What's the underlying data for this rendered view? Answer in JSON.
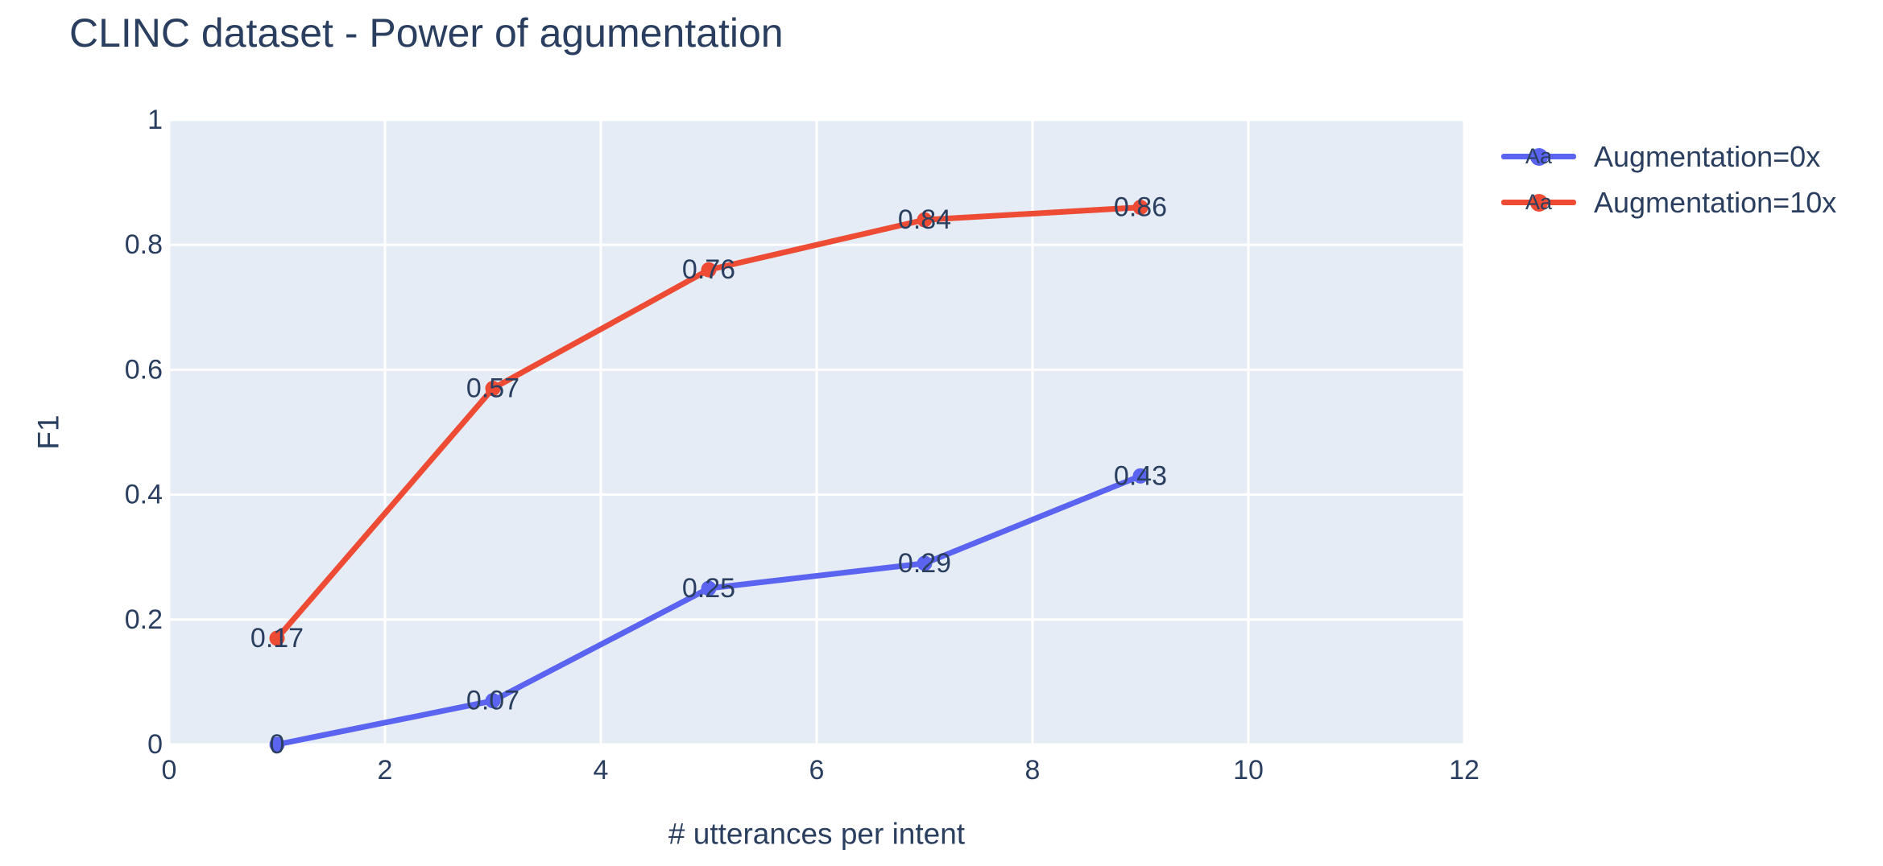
{
  "chart_data": {
    "type": "line",
    "title": "CLINC dataset - Power of agumentation",
    "xlabel": "# utterances per intent",
    "ylabel": "F1",
    "xlim": [
      0,
      12
    ],
    "ylim": [
      0,
      1
    ],
    "xticks": [
      0,
      2,
      4,
      6,
      8,
      10,
      12
    ],
    "xtick_labels": [
      "0",
      "2",
      "4",
      "6",
      "8",
      "10",
      "12"
    ],
    "yticks": [
      0,
      0.2,
      0.4,
      0.6,
      0.8,
      1
    ],
    "ytick_labels": [
      "0",
      "0.2",
      "0.4",
      "0.6",
      "0.8",
      "1"
    ],
    "grid": true,
    "legend_position": "outside-right-top",
    "x": [
      1,
      3,
      5,
      7,
      9
    ],
    "series": [
      {
        "name": "Augmentation=0x",
        "color": "#5b63f1",
        "mode": "lines+markers+text",
        "values": [
          0,
          0.07,
          0.25,
          0.29,
          0.43
        ],
        "point_labels": [
          "0",
          "0.07",
          "0.25",
          "0.29",
          "0.43"
        ]
      },
      {
        "name": "Augmentation=10x",
        "color": "#ee4b35",
        "mode": "lines+markers+text",
        "values": [
          0.17,
          0.57,
          0.76,
          0.84,
          0.86
        ],
        "point_labels": [
          "0.17",
          "0.57",
          "0.76",
          "0.84",
          "0.86"
        ]
      }
    ],
    "colors": {
      "text": "#2a3f5f",
      "plot_bg": "#e5ecf6",
      "grid": "#ffffff"
    }
  },
  "legend": {
    "items": [
      {
        "label": "Augmentation=0x",
        "sample": "Aa",
        "color": "#5b63f1"
      },
      {
        "label": "Augmentation=10x",
        "sample": "Aa",
        "color": "#ee4b35"
      }
    ]
  }
}
